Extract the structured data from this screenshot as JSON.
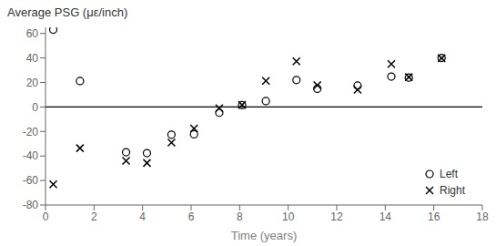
{
  "chart_data": {
    "type": "scatter",
    "ylabel": "Average PSG (με/inch)",
    "xlabel": "Time (years)",
    "series": [
      {
        "name": "Left",
        "marker": "circle",
        "color": "#000000",
        "x": [
          0.32,
          1.42,
          3.32,
          4.18,
          5.19,
          6.12,
          7.16,
          8.1,
          9.08,
          10.34,
          11.2,
          12.86,
          14.25,
          14.97,
          16.32
        ],
        "values": [
          63.1,
          21.2,
          -36.9,
          -37.7,
          -22.6,
          -22.3,
          -4.7,
          1.5,
          4.8,
          22.0,
          14.9,
          17.5,
          24.8,
          24.0,
          40.0
        ]
      },
      {
        "name": "Right",
        "marker": "x",
        "color": "#000000",
        "x": [
          0.32,
          1.42,
          3.32,
          4.18,
          5.19,
          6.12,
          7.16,
          8.1,
          9.08,
          10.34,
          11.2,
          12.86,
          14.25,
          14.97,
          16.32
        ],
        "values": [
          -63.1,
          -33.6,
          -44.0,
          -45.7,
          -29.0,
          -17.6,
          -1.0,
          1.7,
          21.3,
          37.3,
          17.8,
          14.0,
          35.1,
          24.4,
          39.8
        ]
      }
    ],
    "xlim": [
      0,
      18
    ],
    "ylim": [
      -80,
      65
    ],
    "xticks": [
      0,
      2,
      4,
      6,
      8,
      10,
      12,
      14,
      16,
      18
    ],
    "yticks": [
      -80,
      -60,
      -40,
      -20,
      0,
      20,
      40,
      60
    ],
    "hline": 0,
    "legend": "lower right",
    "grid": false
  }
}
